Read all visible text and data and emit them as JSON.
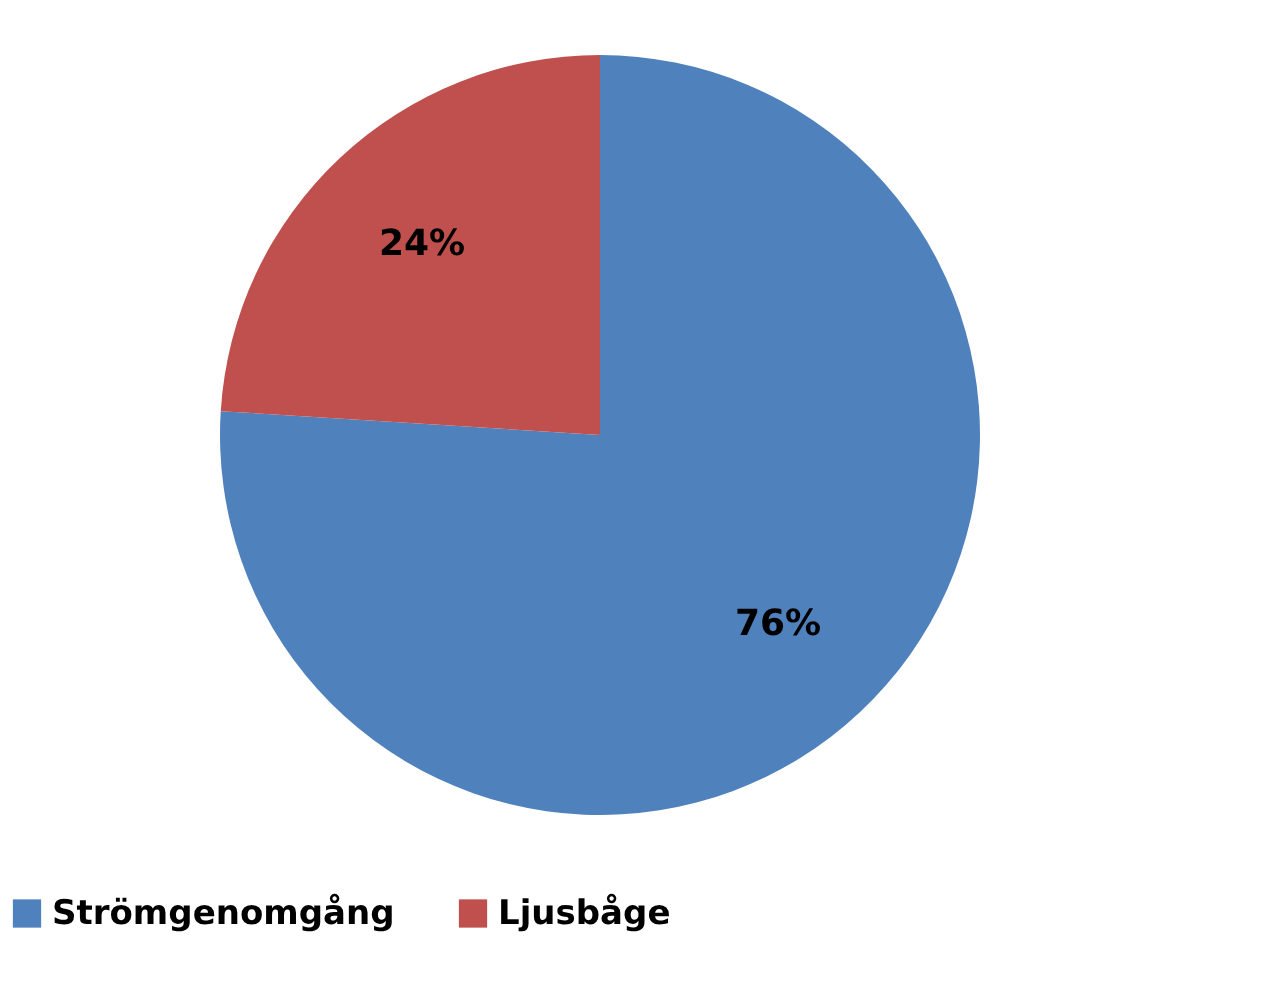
{
  "chart_data": {
    "type": "pie",
    "categories": [
      "Strömgenomgång",
      "Ljusbåge"
    ],
    "values": [
      76,
      24
    ],
    "colors": [
      "#4f81bd",
      "#c0504d"
    ],
    "value_labels": [
      "76%",
      "24%"
    ],
    "legend": "bottom"
  }
}
